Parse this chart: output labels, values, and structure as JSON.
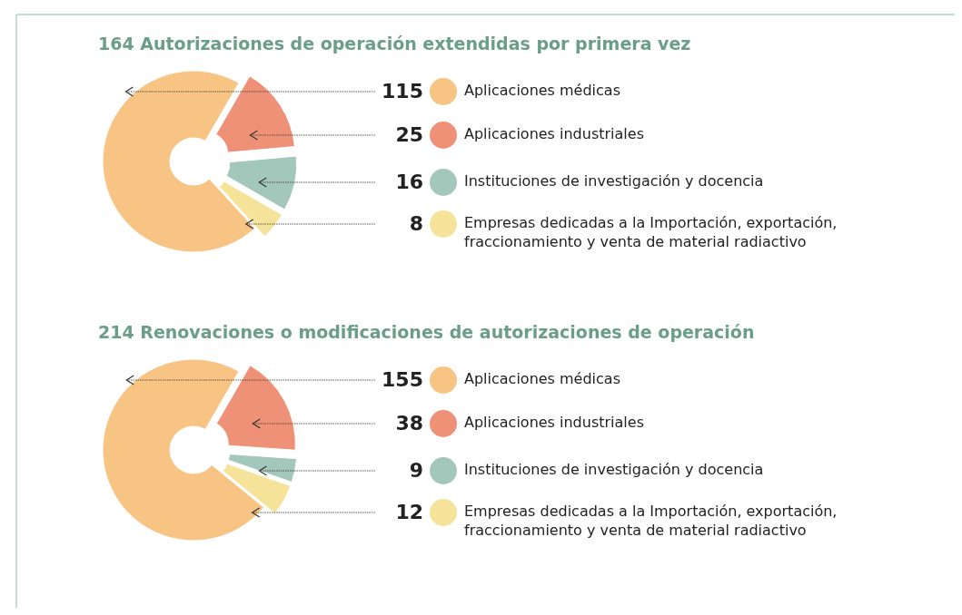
{
  "chart_data": [
    {
      "type": "donut",
      "title": "164 Autorizaciones de operación extendidas por primera vez",
      "categories": [
        "Aplicaciones médicas",
        "Aplicaciones industriales",
        "Instituciones de investigación y docencia",
        "Empresas dedicadas a la Importación, exportación, fraccionamiento y venta de material radiactivo"
      ],
      "values": [
        115,
        25,
        16,
        8
      ],
      "colors": [
        "#f7c483",
        "#ef9176",
        "#a3c7bb",
        "#f6e39a"
      ],
      "data_labels": true,
      "legend": "right"
    },
    {
      "type": "donut",
      "title": "214 Renovaciones o modificaciones de autorizaciones de operación",
      "categories": [
        "Aplicaciones médicas",
        "Aplicaciones industriales",
        "Instituciones de investigación y docencia",
        "Empresas dedicadas a la Importación, exportación, fraccionamiento y venta de material radiactivo"
      ],
      "values": [
        155,
        38,
        9,
        12
      ],
      "colors": [
        "#f7c483",
        "#ef9176",
        "#a3c7bb",
        "#f6e39a"
      ],
      "data_labels": true,
      "legend": "right"
    }
  ]
}
